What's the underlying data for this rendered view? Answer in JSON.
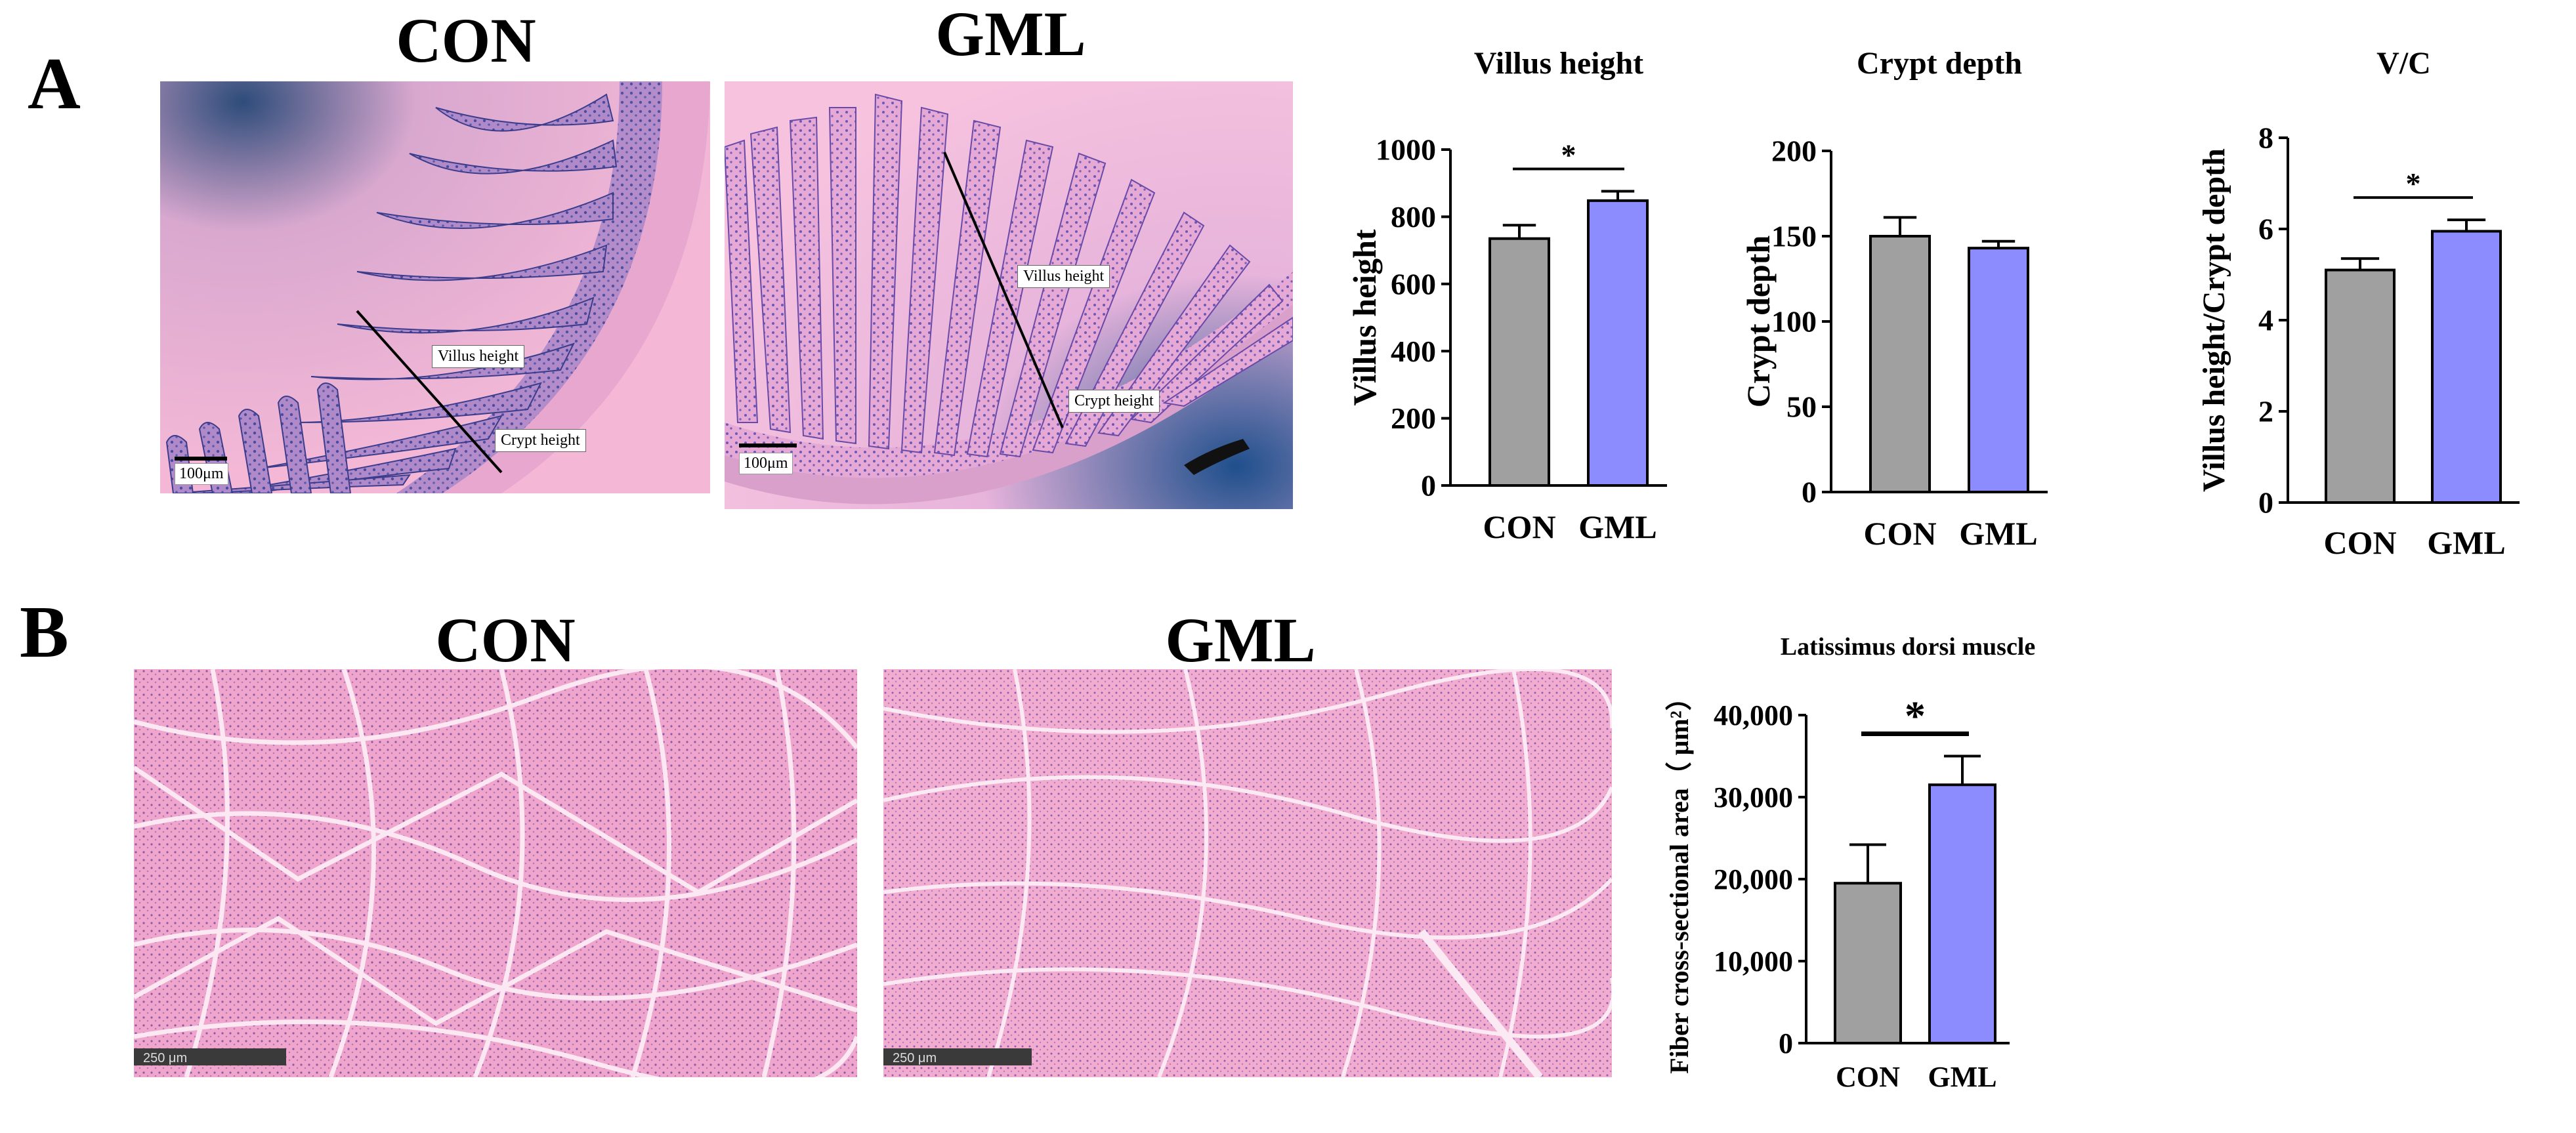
{
  "panels": {
    "a_label": "A",
    "b_label": "B"
  },
  "panel_a": {
    "image_titles": [
      "CON",
      "GML"
    ],
    "con_image": {
      "scale_label": "100μm",
      "annotations": [
        "Villus height",
        "Crypt height"
      ]
    },
    "gml_image": {
      "scale_label": "100μm",
      "annotations": [
        "Villus height",
        "Crypt height"
      ]
    }
  },
  "panel_b": {
    "image_titles": [
      "CON",
      "GML"
    ],
    "con_image": {
      "scale_label": "250 μm"
    },
    "gml_image": {
      "scale_label": "250 μm"
    }
  },
  "colors": {
    "con": "#A0A0A0",
    "gml": "#8C8CFF",
    "he_pink": "#F2B8D6",
    "he_purple": "#5A5AA8"
  },
  "chart_data": [
    {
      "type": "bar",
      "title": "Villus height",
      "ylabel": "Villus height",
      "categories": [
        "CON",
        "GML"
      ],
      "values": [
        735,
        848
      ],
      "errors": [
        40,
        28
      ],
      "ylim": [
        0,
        1000
      ],
      "yticks": [
        "0",
        "200",
        "400",
        "600",
        "800",
        "1000"
      ],
      "significance": "*"
    },
    {
      "type": "bar",
      "title": "Crypt depth",
      "ylabel": "Crypt depth",
      "categories": [
        "CON",
        "GML"
      ],
      "values": [
        150,
        143
      ],
      "errors": [
        11,
        4
      ],
      "ylim": [
        0,
        200
      ],
      "yticks": [
        "0",
        "50",
        "100",
        "150",
        "200"
      ],
      "significance": ""
    },
    {
      "type": "bar",
      "title": "V/C",
      "ylabel": "Villus height/Crypt depth",
      "categories": [
        "CON",
        "GML"
      ],
      "values": [
        5.1,
        5.95
      ],
      "errors": [
        0.25,
        0.25
      ],
      "ylim": [
        0,
        8
      ],
      "yticks": [
        "0",
        "2",
        "4",
        "6",
        "8"
      ],
      "significance": "*"
    },
    {
      "type": "bar",
      "title": "Latissimus dorsi muscle",
      "ylabel": "Fiber cross-sectional area（ μm²）",
      "categories": [
        "CON",
        "GML"
      ],
      "values": [
        19500,
        31500
      ],
      "errors": [
        4700,
        3500
      ],
      "ylim": [
        0,
        40000
      ],
      "yticks": [
        "0",
        "10,000",
        "20,000",
        "30,000",
        "40,000"
      ],
      "significance": "*"
    }
  ]
}
